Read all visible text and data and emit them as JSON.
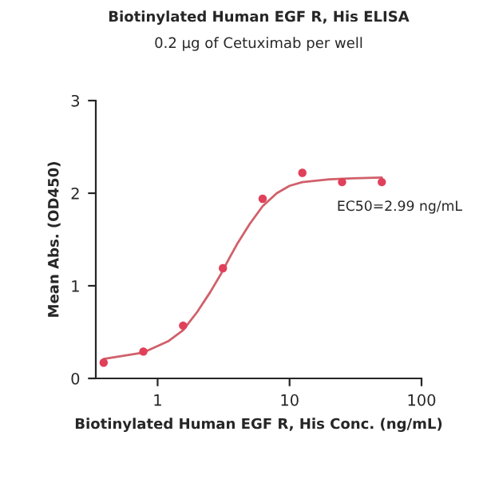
{
  "chart_data": {
    "type": "scatter",
    "title": "Biotinylated Human EGF R, His ELISA",
    "subtitle": "0.2 µg of Cetuximab per well",
    "xlabel": "Biotinylated Human EGF R, His Conc. (ng/mL)",
    "ylabel": "Mean Abs. (OD450)",
    "log": "x",
    "xlim": [
      0.34,
      100
    ],
    "xticks": [
      1,
      10,
      100
    ],
    "ylim": [
      0,
      3
    ],
    "yticks": [
      0,
      1,
      2,
      3
    ],
    "grid": false,
    "annotations": [
      "EC50=2.99 ng/mL"
    ],
    "series": [
      {
        "color": "#e0405a",
        "marker": "circle",
        "x": [
          0.39,
          0.78,
          1.56,
          3.125,
          6.25,
          12.5,
          25,
          50
        ],
        "values": [
          0.17,
          0.29,
          0.57,
          1.19,
          1.94,
          2.22,
          2.12,
          2.12
        ]
      },
      {
        "type": "line",
        "color": "#d0606a",
        "marker": "none",
        "x": [
          0.39,
          0.78,
          1.2,
          1.56,
          2,
          2.5,
          3,
          3.5,
          4,
          5,
          6.25,
          8,
          10,
          12.5,
          20,
          30,
          50
        ],
        "values": [
          0.21,
          0.28,
          0.4,
          0.52,
          0.72,
          0.93,
          1.12,
          1.3,
          1.45,
          1.67,
          1.86,
          2.0,
          2.08,
          2.12,
          2.15,
          2.16,
          2.17
        ]
      }
    ]
  }
}
